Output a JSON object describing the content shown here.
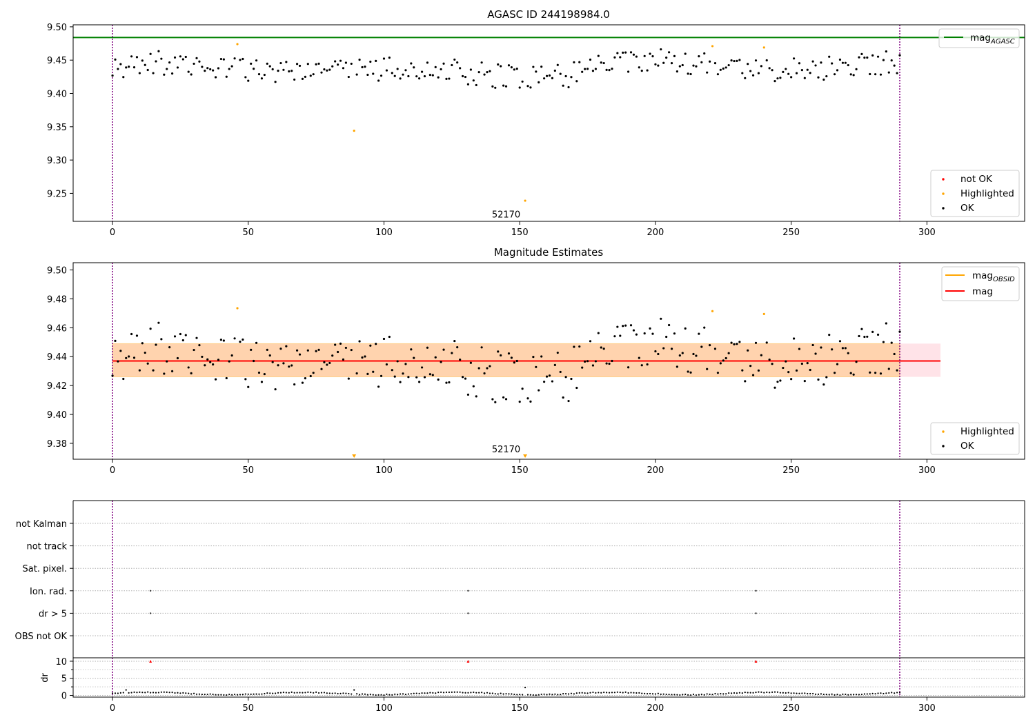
{
  "chart_data": [
    {
      "id": "mag_agasc",
      "type": "scatter",
      "title": "AGASC ID 244198984.0",
      "xlim": [
        -14.5,
        336
      ],
      "ylim": [
        9.208,
        9.503
      ],
      "xticks": [
        0,
        50,
        100,
        150,
        200,
        250,
        300
      ],
      "yticks": [
        9.25,
        9.3,
        9.35,
        9.4,
        9.45,
        9.5
      ],
      "ytick_labels": [
        "9.25",
        "9.30",
        "9.35",
        "9.40",
        "9.45",
        "9.50"
      ],
      "hlines": [
        {
          "name": "magAGASC",
          "y": 9.484,
          "color": "#008000"
        }
      ],
      "vlines": [
        0,
        290
      ],
      "annotation": {
        "text": "52170",
        "x": 145,
        "y": 9.216
      },
      "legend_lines": [
        {
          "label": "mag",
          "sub": "AGASC",
          "color": "#008000"
        }
      ],
      "legend_points": [
        {
          "label": "not OK",
          "color": "#ff0000"
        },
        {
          "label": "Highlighted",
          "color": "#ffa500"
        },
        {
          "label": "OK",
          "color": "#000000"
        }
      ],
      "highlighted": [
        [
          46,
          9.474
        ],
        [
          89,
          9.344
        ],
        [
          152,
          9.239
        ],
        [
          221,
          9.471
        ],
        [
          240,
          9.469
        ]
      ]
    },
    {
      "id": "mag_estimates",
      "type": "scatter",
      "title": "Magnitude Estimates",
      "xlim": [
        -14.5,
        336
      ],
      "ylim": [
        9.369,
        9.505
      ],
      "xticks": [
        0,
        50,
        100,
        150,
        200,
        250,
        300
      ],
      "yticks": [
        9.38,
        9.4,
        9.42,
        9.44,
        9.46,
        9.48,
        9.5
      ],
      "ytick_labels": [
        "9.38",
        "9.40",
        "9.42",
        "9.44",
        "9.46",
        "9.48",
        "9.50"
      ],
      "mag": 9.437,
      "mag_obsid": 9.437,
      "band_pink": [
        9.426,
        9.449
      ],
      "band_orange": [
        9.426,
        9.449
      ],
      "band_x": [
        0,
        305
      ],
      "vlines": [
        0,
        290
      ],
      "annotation": {
        "text": "52170",
        "x": 145,
        "y": 9.373
      },
      "legend_lines": [
        {
          "label": "mag",
          "sub": "OBSID",
          "color": "#ffa500"
        },
        {
          "label": "mag",
          "sub": "",
          "color": "#ff0000"
        }
      ],
      "legend_points": [
        {
          "label": "Highlighted",
          "color": "#ffa500"
        },
        {
          "label": "OK",
          "color": "#000000"
        }
      ],
      "highlighted": [
        [
          46,
          9.4735
        ],
        [
          221,
          9.4715
        ],
        [
          240,
          9.4695
        ]
      ],
      "offscale_markers": [
        89,
        152
      ]
    },
    {
      "id": "flags",
      "type": "scatter",
      "xlim": [
        -14.5,
        336
      ],
      "categories": [
        "not Kalman",
        "not track",
        "Sat. pixel.",
        "Ion. rad.",
        "dr > 5",
        "OBS not OK"
      ],
      "flag_points": [
        {
          "category": "Ion. rad.",
          "x": [
            14,
            131,
            237
          ]
        },
        {
          "category": "dr > 5",
          "x": [
            14,
            131,
            237
          ]
        }
      ],
      "vlines": [
        0,
        290
      ]
    },
    {
      "id": "dr",
      "type": "scatter",
      "ylabel": "dr",
      "xlim": [
        -14.5,
        336
      ],
      "ylim": [
        -0.5,
        11
      ],
      "xticks": [
        0,
        50,
        100,
        150,
        200,
        250,
        300
      ],
      "yticks": [
        0,
        5,
        10
      ],
      "ytick_labels": [
        "0",
        "5",
        "10"
      ],
      "clipped_markers": [
        14,
        131,
        237
      ],
      "outliers": [
        [
          5,
          1.6
        ],
        [
          89,
          1.6
        ],
        [
          152,
          2.3
        ]
      ],
      "vlines": [
        0,
        290
      ]
    }
  ]
}
